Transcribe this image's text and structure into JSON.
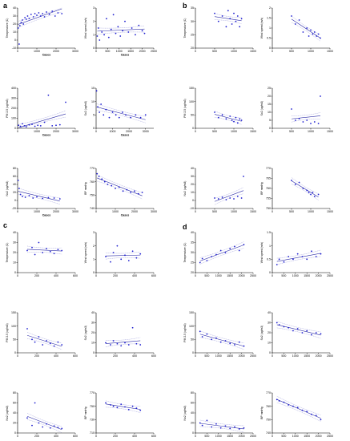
{
  "panel_labels": [
    "a",
    "b",
    "c",
    "d"
  ],
  "chart_data": [
    {
      "panel": "a",
      "type": "scatter",
      "xlabel": "Cases",
      "ylabel": "Temperature (C)",
      "xlim": [
        0,
        3000
      ],
      "ylim": [
        -10,
        40
      ],
      "xticks": [
        0,
        1000,
        2000,
        3000
      ],
      "yticks": [
        -10,
        0,
        10,
        20,
        30,
        40
      ],
      "x": [
        30,
        80,
        120,
        180,
        250,
        300,
        380,
        450,
        520,
        600,
        700,
        820,
        900,
        1000,
        1100,
        1200,
        1300,
        1400,
        1500,
        1650,
        1800,
        1950,
        2100,
        2300
      ],
      "y": [
        15,
        -5,
        18,
        22,
        25,
        20,
        28,
        26,
        30,
        27,
        32,
        29,
        33,
        31,
        34,
        30,
        33,
        29,
        35,
        32,
        36,
        30,
        34,
        33
      ]
    },
    {
      "panel": "a",
      "type": "scatter",
      "xlabel": "Cases",
      "ylabel": "Wind speed (m/s)",
      "xlim": [
        0,
        2500
      ],
      "ylim": [
        0,
        3
      ],
      "xticks": [
        0,
        500,
        1000,
        1500,
        2000,
        2500
      ],
      "yticks": [
        0,
        1,
        2,
        3
      ],
      "x": [
        50,
        100,
        150,
        250,
        350,
        450,
        550,
        650,
        750,
        850,
        950,
        1050,
        1150,
        1250,
        1400,
        1550,
        1700,
        1850,
        2000,
        2100
      ],
      "y": [
        0.9,
        1.5,
        0.6,
        1.2,
        1.0,
        2.2,
        0.8,
        1.4,
        2.5,
        1.1,
        1.6,
        0.9,
        1.3,
        2.0,
        1.2,
        1.5,
        1.0,
        1.7,
        1.3,
        1.1
      ]
    },
    {
      "panel": "a",
      "type": "scatter",
      "xlabel": "Cases",
      "ylabel": "PM 2.5 (ug/m3)",
      "xlim": [
        0,
        3000
      ],
      "ylim": [
        0,
        400
      ],
      "xticks": [
        0,
        1000,
        2000,
        3000
      ],
      "yticks": [
        0,
        100,
        200,
        300,
        400
      ],
      "x": [
        50,
        150,
        250,
        350,
        450,
        600,
        750,
        900,
        1050,
        1200,
        1400,
        1600,
        1800,
        2000,
        2200,
        2500
      ],
      "y": [
        30,
        20,
        45,
        25,
        15,
        35,
        40,
        20,
        30,
        25,
        60,
        330,
        25,
        30,
        35,
        260
      ]
    },
    {
      "panel": "a",
      "type": "scatter",
      "xlabel": "Cases",
      "ylabel": "So2 (ug/m3)",
      "xlim": [
        0,
        3500
      ],
      "ylim": [
        0,
        15
      ],
      "xticks": [
        0,
        1000,
        2000,
        3000
      ],
      "yticks": [
        0,
        5,
        10,
        15
      ],
      "x": [
        30,
        100,
        200,
        300,
        450,
        600,
        800,
        1000,
        1200,
        1400,
        1600,
        1800,
        2100,
        2400,
        2700,
        3000
      ],
      "y": [
        14,
        8,
        6,
        9,
        5,
        7,
        4,
        6,
        5,
        4,
        6,
        5,
        4,
        5,
        4,
        5
      ]
    },
    {
      "panel": "a",
      "type": "scatter",
      "xlabel": "Cases",
      "ylabel": "No2 (ug/m3)",
      "xlim": [
        0,
        3000
      ],
      "ylim": [
        -20,
        80
      ],
      "xticks": [
        0,
        1000,
        2000,
        3000
      ],
      "yticks": [
        -20,
        0,
        20,
        40,
        60,
        80
      ],
      "x": [
        30,
        80,
        150,
        250,
        400,
        600,
        800,
        1000,
        1300,
        1600,
        1900,
        2200
      ],
      "y": [
        50,
        30,
        15,
        10,
        8,
        12,
        6,
        9,
        5,
        7,
        6,
        4
      ]
    },
    {
      "panel": "a",
      "type": "scatter",
      "xlabel": "Cases",
      "ylabel": "BP mmHg",
      "xlim": [
        0,
        3000
      ],
      "ylim": [
        740,
        770
      ],
      "xticks": [
        0,
        1000,
        2000,
        3000
      ],
      "yticks": [
        740,
        750,
        760,
        770
      ],
      "x": [
        50,
        150,
        300,
        450,
        600,
        800,
        1000,
        1200,
        1400,
        1600,
        1800,
        2000,
        2200,
        2400
      ],
      "y": [
        766,
        764,
        762,
        760,
        758,
        757,
        755,
        756,
        753,
        754,
        752,
        753,
        751,
        752
      ]
    },
    {
      "panel": "b",
      "type": "scatter",
      "xlabel": "",
      "ylabel": "Temperature (C)",
      "xlim": [
        0,
        1500
      ],
      "ylim": [
        20,
        35
      ],
      "xticks": [
        0,
        500,
        1000,
        1500
      ],
      "yticks": [
        20,
        25,
        30,
        35
      ],
      "x": [
        500,
        600,
        700,
        800,
        850,
        900,
        950,
        1000,
        1050,
        1100,
        1150,
        1200
      ],
      "y": [
        33,
        30,
        32,
        28,
        34,
        31,
        29,
        33,
        30,
        32,
        28,
        31
      ]
    },
    {
      "panel": "b",
      "type": "scatter",
      "xlabel": "",
      "ylabel": "Wind speed (m/s)",
      "xlim": [
        0,
        1500
      ],
      "ylim": [
        0,
        2
      ],
      "xticks": [
        0,
        500,
        1000,
        1500
      ],
      "yticks": [
        0,
        0.5,
        1.0,
        1.5,
        2.0
      ],
      "x": [
        500,
        600,
        700,
        800,
        900,
        950,
        1000,
        1050,
        1100,
        1150,
        1200,
        1250
      ],
      "y": [
        1.6,
        1.2,
        1.4,
        0.8,
        1.0,
        0.6,
        0.9,
        0.7,
        0.8,
        0.6,
        0.7,
        0.5
      ]
    },
    {
      "panel": "b",
      "type": "scatter",
      "xlabel": "",
      "ylabel": "PM 2.5 (ug/m3)",
      "xlim": [
        0,
        1500
      ],
      "ylim": [
        0,
        150
      ],
      "xticks": [
        0,
        500,
        1000,
        1500
      ],
      "yticks": [
        0,
        50,
        100,
        150
      ],
      "x": [
        500,
        600,
        700,
        800,
        900,
        950,
        1000,
        1050,
        1100,
        1150,
        1200
      ],
      "y": [
        60,
        40,
        50,
        35,
        45,
        30,
        25,
        40,
        20,
        35,
        30
      ]
    },
    {
      "panel": "b",
      "type": "scatter",
      "xlabel": "",
      "ylabel": "So2 (ug/m3)",
      "xlim": [
        0,
        1500
      ],
      "ylim": [
        0,
        25
      ],
      "xticks": [
        0,
        500,
        1000,
        1500
      ],
      "yticks": [
        0,
        5,
        10,
        15,
        20,
        25
      ],
      "x": [
        500,
        600,
        700,
        800,
        900,
        1000,
        1100,
        1200,
        1250
      ],
      "y": [
        12,
        5,
        6,
        4,
        5,
        3,
        4,
        3,
        20
      ]
    },
    {
      "panel": "b",
      "type": "scatter",
      "xlabel": "",
      "ylabel": "No2 (ug/m3)",
      "xlim": [
        0,
        1500
      ],
      "ylim": [
        -10,
        40
      ],
      "xticks": [
        0,
        500,
        1000,
        1500
      ],
      "yticks": [
        -10,
        0,
        10,
        20,
        30,
        40
      ],
      "x": [
        500,
        600,
        700,
        800,
        900,
        1000,
        1100,
        1200,
        1250
      ],
      "y": [
        3,
        2,
        4,
        1,
        3,
        2,
        5,
        3,
        30
      ]
    },
    {
      "panel": "b",
      "type": "scatter",
      "xlabel": "",
      "ylabel": "BP mmHg",
      "xlim": [
        0,
        1500
      ],
      "ylim": [
        750,
        770
      ],
      "xticks": [
        0,
        500,
        1000,
        1500
      ],
      "yticks": [
        750,
        755,
        760,
        765,
        770
      ],
      "x": [
        500,
        600,
        700,
        800,
        900,
        950,
        1000,
        1050,
        1100,
        1200
      ],
      "y": [
        764,
        762,
        763,
        760,
        759,
        758,
        757,
        758,
        756,
        757
      ]
    },
    {
      "panel": "c",
      "type": "scatter",
      "xlabel": "",
      "ylabel": "Temperature (C)",
      "xlim": [
        0,
        600
      ],
      "ylim": [
        0,
        40
      ],
      "xticks": [
        0,
        200,
        400,
        600
      ],
      "yticks": [
        0,
        10,
        20,
        30,
        40
      ],
      "x": [
        100,
        150,
        180,
        220,
        260,
        300,
        340,
        380,
        420,
        460
      ],
      "y": [
        22,
        25,
        18,
        30,
        20,
        24,
        21,
        19,
        23,
        22
      ]
    },
    {
      "panel": "c",
      "type": "scatter",
      "xlabel": "",
      "ylabel": "Wind speed (m/s)",
      "xlim": [
        0,
        600
      ],
      "ylim": [
        0,
        3
      ],
      "xticks": [
        0,
        200,
        400,
        600
      ],
      "yticks": [
        0,
        1,
        2,
        3
      ],
      "x": [
        100,
        150,
        180,
        220,
        260,
        300,
        340,
        380,
        420,
        460
      ],
      "y": [
        1.2,
        0.8,
        1.5,
        2.0,
        1.0,
        1.3,
        0.9,
        1.6,
        1.1,
        1.4
      ]
    },
    {
      "panel": "c",
      "type": "scatter",
      "xlabel": "",
      "ylabel": "PM 2.5 (ug/m3)",
      "xlim": [
        0,
        600
      ],
      "ylim": [
        0,
        150
      ],
      "xticks": [
        0,
        200,
        400,
        600
      ],
      "yticks": [
        0,
        50,
        100,
        150
      ],
      "x": [
        100,
        150,
        180,
        220,
        260,
        300,
        340,
        380,
        420,
        460
      ],
      "y": [
        90,
        50,
        40,
        60,
        30,
        45,
        35,
        25,
        40,
        30
      ]
    },
    {
      "panel": "c",
      "type": "scatter",
      "xlabel": "",
      "ylabel": "So2 (ug/m3)",
      "xlim": [
        0,
        600
      ],
      "ylim": [
        0,
        40
      ],
      "xticks": [
        0,
        200,
        400,
        600
      ],
      "yticks": [
        0,
        10,
        20,
        30,
        40
      ],
      "x": [
        100,
        150,
        180,
        220,
        260,
        300,
        340,
        380,
        420,
        460
      ],
      "y": [
        10,
        8,
        12,
        9,
        7,
        10,
        8,
        25,
        9,
        8
      ]
    },
    {
      "panel": "c",
      "type": "scatter",
      "xlabel": "",
      "ylabel": "No2 (ug/m3)",
      "xlim": [
        0,
        600
      ],
      "ylim": [
        0,
        80
      ],
      "xticks": [
        0,
        200,
        400,
        600
      ],
      "yticks": [
        0,
        20,
        40,
        60,
        80
      ],
      "x": [
        100,
        150,
        180,
        220,
        260,
        300,
        340,
        380,
        420,
        460
      ],
      "y": [
        30,
        15,
        60,
        20,
        12,
        18,
        10,
        14,
        11,
        9
      ]
    },
    {
      "panel": "c",
      "type": "scatter",
      "xlabel": "",
      "ylabel": "BP mmHg",
      "xlim": [
        0,
        600
      ],
      "ylim": [
        710,
        770
      ],
      "xticks": [
        0,
        200,
        400,
        600
      ],
      "yticks": [
        710,
        730,
        750,
        770
      ],
      "x": [
        100,
        150,
        180,
        220,
        260,
        300,
        340,
        380,
        420,
        460
      ],
      "y": [
        755,
        752,
        750,
        748,
        753,
        749,
        745,
        750,
        747,
        744
      ]
    },
    {
      "panel": "d",
      "type": "scatter",
      "xlabel": "",
      "ylabel": "Temperature (C)",
      "xlim": [
        0,
        2500
      ],
      "ylim": [
        20,
        40
      ],
      "xticks": [
        0,
        500,
        1000,
        1500,
        2000,
        2500
      ],
      "yticks": [
        20,
        25,
        30,
        35,
        40
      ],
      "x": [
        200,
        300,
        500,
        700,
        900,
        1100,
        1300,
        1500,
        1700,
        1900,
        2100
      ],
      "y": [
        25,
        27,
        26,
        28,
        29,
        31,
        30,
        32,
        33,
        31,
        34
      ]
    },
    {
      "panel": "d",
      "type": "scatter",
      "xlabel": "",
      "ylabel": "Wind speed (m/s)",
      "xlim": [
        0,
        2500
      ],
      "ylim": [
        0,
        1.5
      ],
      "xticks": [
        0,
        500,
        1000,
        1500,
        2000,
        2500
      ],
      "yticks": [
        0,
        0.5,
        1.0,
        1.5
      ],
      "x": [
        200,
        300,
        500,
        700,
        900,
        1100,
        1300,
        1500,
        1700,
        1900,
        2100
      ],
      "y": [
        0.3,
        0.5,
        0.4,
        0.6,
        0.5,
        0.7,
        0.6,
        0.5,
        0.8,
        0.6,
        0.7
      ]
    },
    {
      "panel": "d",
      "type": "scatter",
      "xlabel": "",
      "ylabel": "PM 2.5 (ug/m3)",
      "xlim": [
        0,
        2500
      ],
      "ylim": [
        0,
        150
      ],
      "xticks": [
        0,
        500,
        1000,
        1500,
        2000,
        2500
      ],
      "yticks": [
        0,
        50,
        100,
        150
      ],
      "x": [
        200,
        300,
        500,
        700,
        900,
        1100,
        1300,
        1500,
        1700,
        1900,
        2100
      ],
      "y": [
        80,
        60,
        70,
        50,
        55,
        40,
        45,
        35,
        30,
        40,
        25
      ]
    },
    {
      "panel": "d",
      "type": "scatter",
      "xlabel": "",
      "ylabel": "So2 (ug/m3)",
      "xlim": [
        0,
        2500
      ],
      "ylim": [
        0,
        40
      ],
      "xticks": [
        0,
        500,
        1000,
        1500,
        2000,
        2500
      ],
      "yticks": [
        0,
        10,
        20,
        30,
        40
      ],
      "x": [
        200,
        300,
        500,
        700,
        900,
        1100,
        1300,
        1500,
        1700,
        1900,
        2100
      ],
      "y": [
        30,
        28,
        26,
        25,
        22,
        24,
        20,
        22,
        18,
        20,
        19
      ]
    },
    {
      "panel": "d",
      "type": "scatter",
      "xlabel": "",
      "ylabel": "No2 (ug/m3)",
      "xlim": [
        0,
        2500
      ],
      "ylim": [
        0,
        80
      ],
      "xticks": [
        0,
        500,
        1000,
        1500,
        2000,
        2500
      ],
      "yticks": [
        0,
        20,
        40,
        60,
        80
      ],
      "x": [
        200,
        300,
        500,
        700,
        900,
        1100,
        1300,
        1500,
        1700,
        1900,
        2100
      ],
      "y": [
        20,
        15,
        25,
        12,
        18,
        10,
        14,
        9,
        12,
        8,
        10
      ]
    },
    {
      "panel": "d",
      "type": "scatter",
      "xlabel": "",
      "ylabel": "BP mmHg",
      "xlim": [
        0,
        2500
      ],
      "ylim": [
        740,
        770
      ],
      "xticks": [
        0,
        500,
        1000,
        1500,
        2000,
        2500
      ],
      "yticks": [
        740,
        750,
        760,
        770
      ],
      "x": [
        200,
        300,
        500,
        700,
        900,
        1100,
        1300,
        1500,
        1700,
        1900,
        2100
      ],
      "y": [
        765,
        764,
        763,
        761,
        760,
        759,
        757,
        756,
        754,
        753,
        750
      ]
    }
  ]
}
